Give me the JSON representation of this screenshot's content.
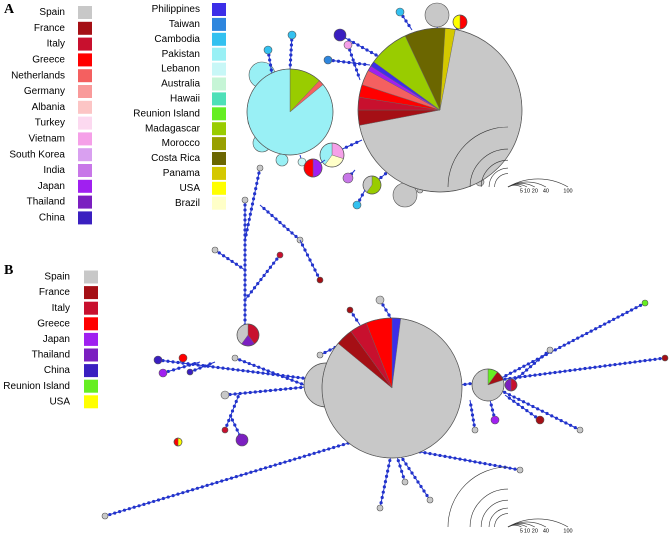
{
  "panels": [
    {
      "label": "A",
      "legend": [
        {
          "name": "Spain",
          "color": "#c8c8c8"
        },
        {
          "name": "France",
          "color": "#a50f15"
        },
        {
          "name": "Italy",
          "color": "#c8102e"
        },
        {
          "name": "Greece",
          "color": "#ff0000"
        },
        {
          "name": "Netherlands",
          "color": "#f46060"
        },
        {
          "name": "Germany",
          "color": "#f99a9a"
        },
        {
          "name": "Albania",
          "color": "#fcc5c5"
        },
        {
          "name": "Turkey",
          "color": "#fcd9f0"
        },
        {
          "name": "Vietnam",
          "color": "#f5a0e8"
        },
        {
          "name": "South Korea",
          "color": "#d9a0f0"
        },
        {
          "name": "India",
          "color": "#c877e8"
        },
        {
          "name": "Japan",
          "color": "#a020f0"
        },
        {
          "name": "Thailand",
          "color": "#7b1fc0"
        },
        {
          "name": "China",
          "color": "#3a1fc0"
        },
        {
          "name": "Philippines",
          "color": "#3c2ee8"
        },
        {
          "name": "Taiwan",
          "color": "#2e86de"
        },
        {
          "name": "Cambodia",
          "color": "#33c1f0"
        },
        {
          "name": "Pakistan",
          "color": "#99f0f5"
        },
        {
          "name": "Lebanon",
          "color": "#c8f7f7"
        },
        {
          "name": "Australia",
          "color": "#c6f5d6"
        },
        {
          "name": "Hawaii",
          "color": "#4ee0b8"
        },
        {
          "name": "Reunion Island",
          "color": "#66ee22"
        },
        {
          "name": "Madagascar",
          "color": "#99cc00"
        },
        {
          "name": "Morocco",
          "color": "#99a000"
        },
        {
          "name": "Costa Rica",
          "color": "#6b6600"
        },
        {
          "name": "Panama",
          "color": "#d4c800"
        },
        {
          "name": "USA",
          "color": "#ffff00"
        },
        {
          "name": "Brazil",
          "color": "#ffffc8"
        }
      ],
      "scale": [
        5,
        10,
        20,
        40,
        100
      ]
    },
    {
      "label": "B",
      "legend": [
        {
          "name": "Spain",
          "color": "#c8c8c8"
        },
        {
          "name": "France",
          "color": "#a50f15"
        },
        {
          "name": "Italy",
          "color": "#c8102e"
        },
        {
          "name": "Greece",
          "color": "#ff0000"
        },
        {
          "name": "Japan",
          "color": "#a020f0"
        },
        {
          "name": "Thailand",
          "color": "#7b1fc0"
        },
        {
          "name": "China",
          "color": "#3a1fc0"
        },
        {
          "name": "Reunion Island",
          "color": "#66ee22"
        },
        {
          "name": "USA",
          "color": "#ffff00"
        }
      ],
      "scale": [
        5,
        10,
        20,
        40,
        100
      ]
    }
  ]
}
